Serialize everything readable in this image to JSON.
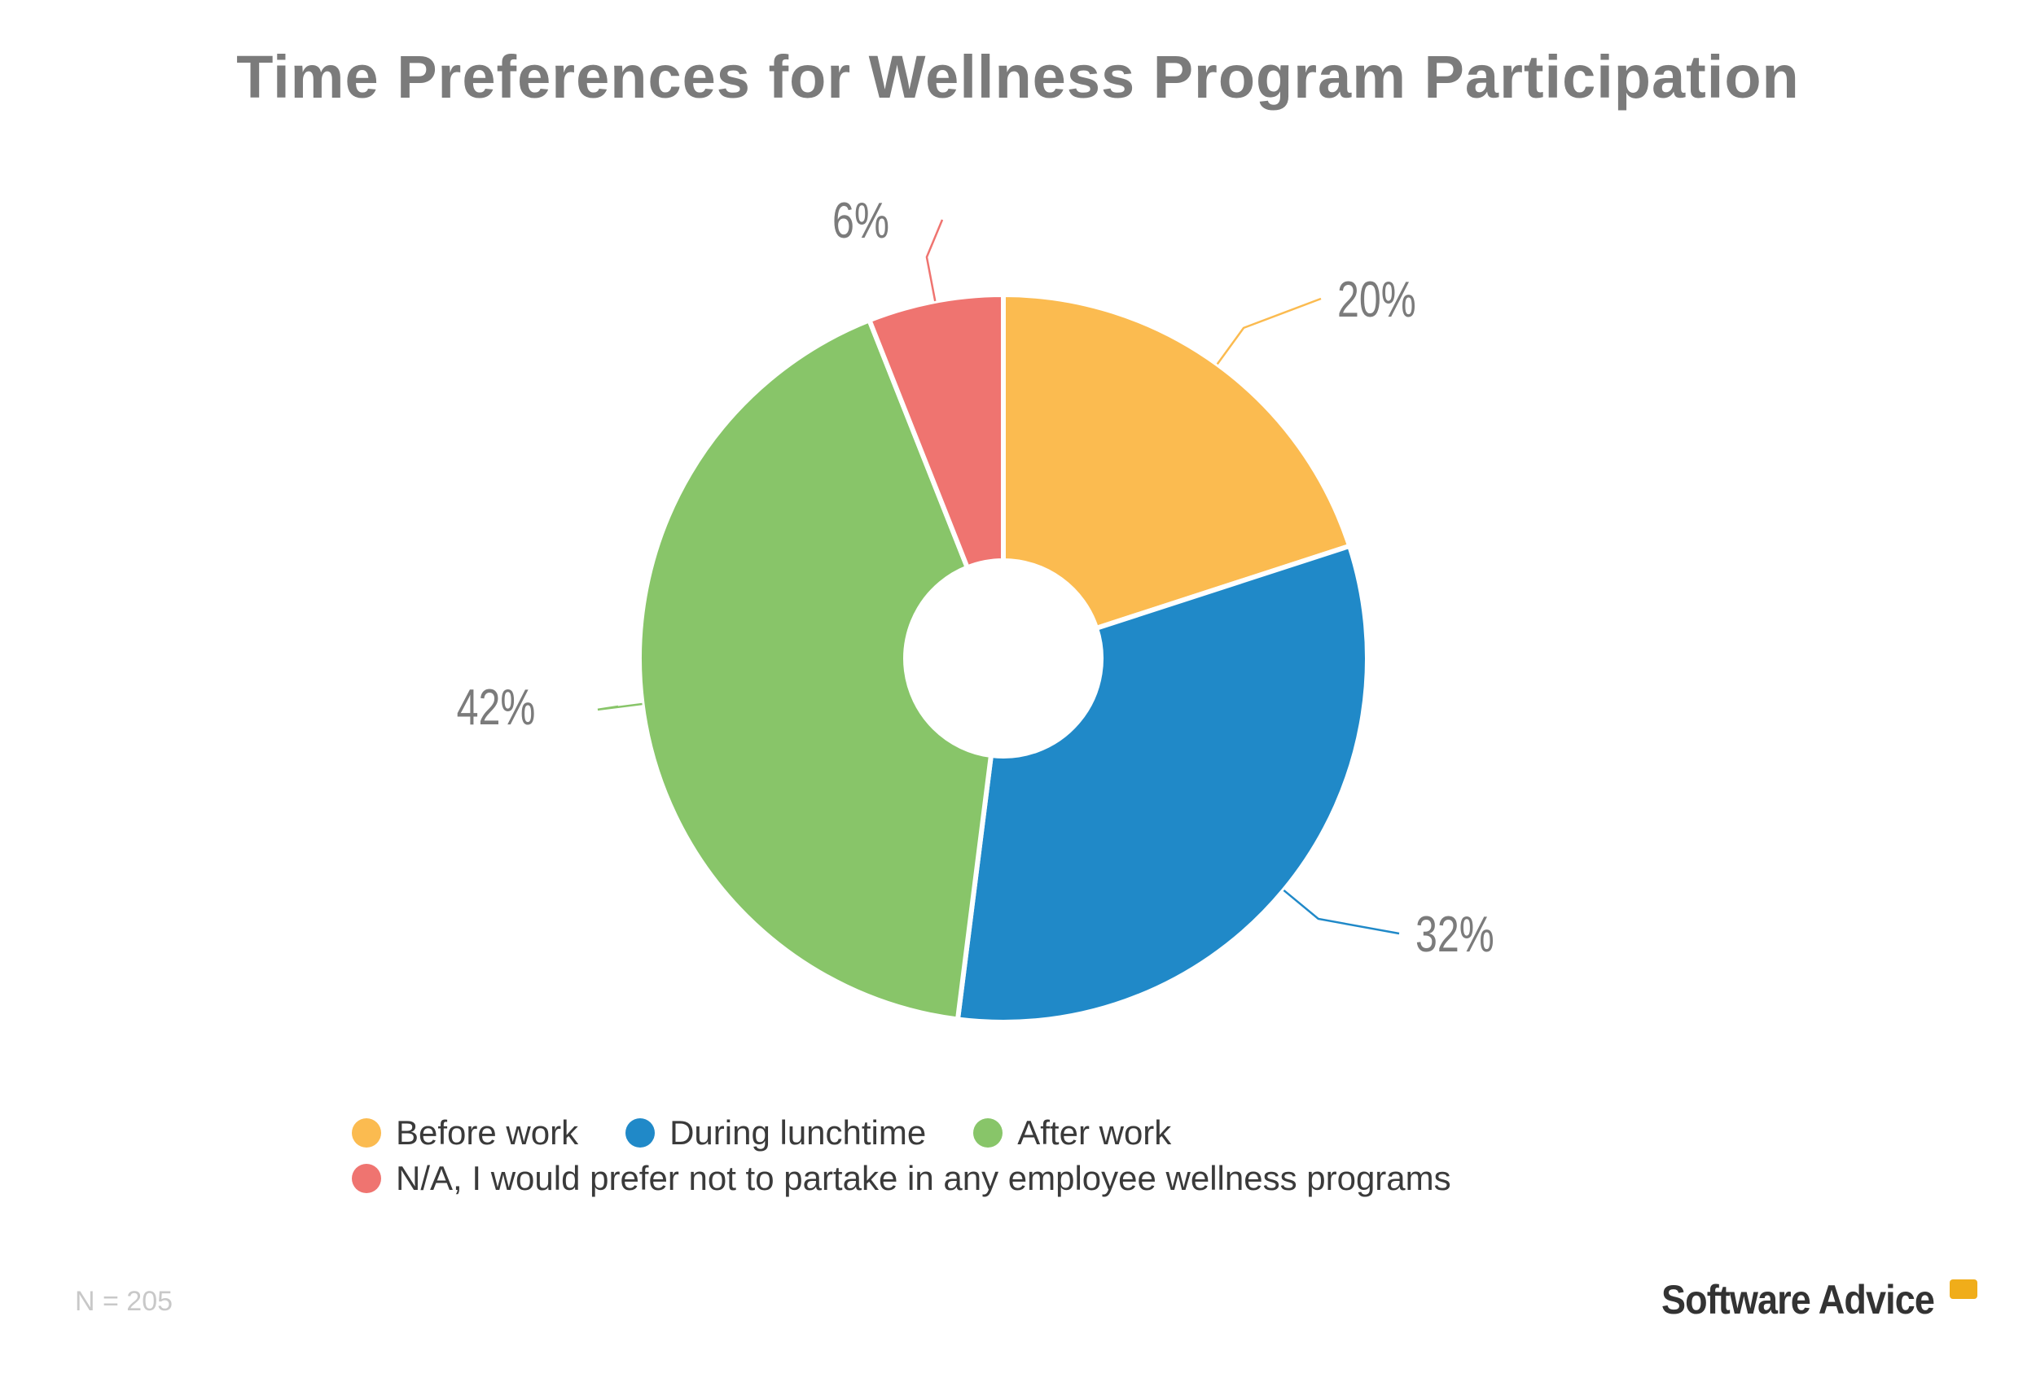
{
  "chart_data": {
    "type": "pie",
    "donut": true,
    "title": "Time Preferences for Wellness Program Participation",
    "categories": [
      "Before work",
      "During lunchtime",
      "After work",
      "N/A, I would prefer not to partake in any employee wellness programs"
    ],
    "values": [
      20,
      32,
      42,
      6
    ],
    "data_labels": [
      "20%",
      "32%",
      "42%",
      "6%"
    ],
    "colors": [
      "#fbbb50",
      "#2089c8",
      "#88c569",
      "#ef7470"
    ],
    "legend_position": "bottom"
  },
  "footnote": "N = 205",
  "logo": "Software Advice"
}
